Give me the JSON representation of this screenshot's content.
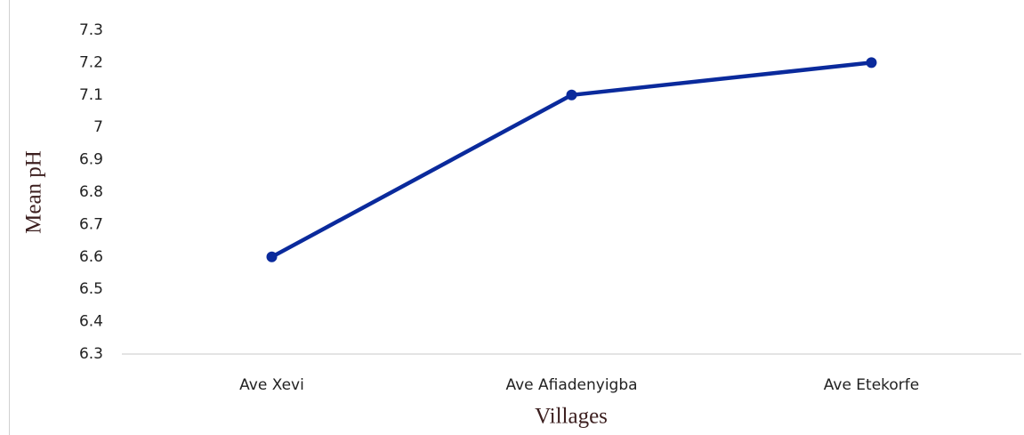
{
  "chart_data": {
    "type": "line",
    "x_label": "Villages",
    "y_label": "Mean pH",
    "categories": [
      "Ave Xevi",
      "Ave Afiadenyigba",
      "Ave Etekorfe"
    ],
    "values": [
      6.6,
      7.1,
      7.2
    ],
    "color": "#0a2a9c",
    "ylim": [
      6.3,
      7.3
    ],
    "yticks": [
      6.3,
      6.4,
      6.5,
      6.6,
      6.7,
      6.8,
      6.9,
      7,
      7.1,
      7.2,
      7.3
    ],
    "grid": false
  }
}
